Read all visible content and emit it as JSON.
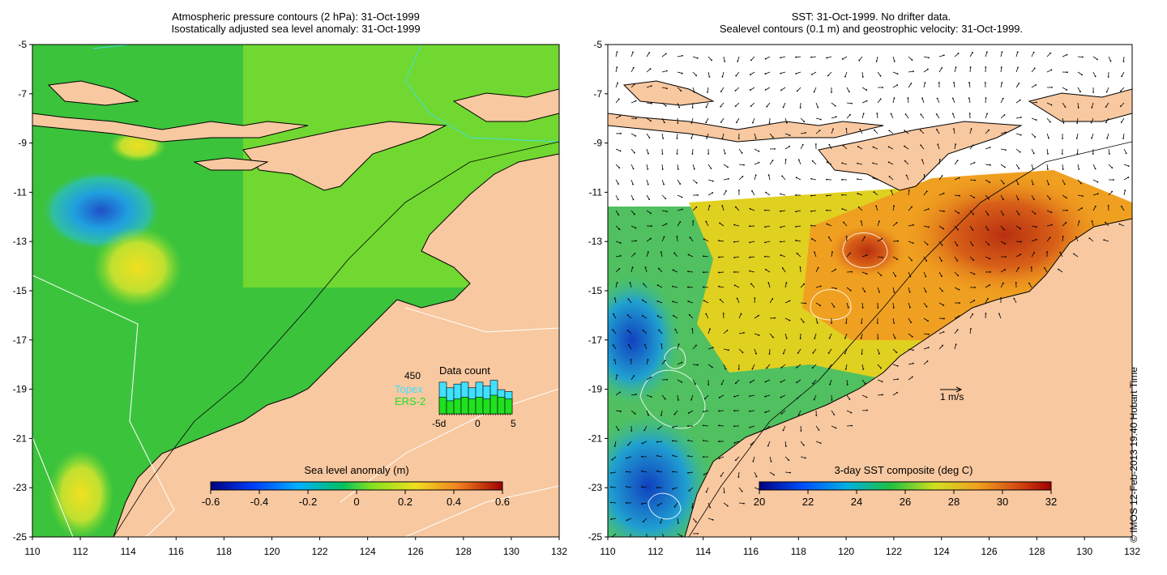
{
  "left_panel": {
    "title_line1": "Atmospheric pressure contours (2 hPa): 31-Oct-1999",
    "title_line2": "Isostatically adjusted sea level anomaly: 31-Oct-1999",
    "colorbar": {
      "label": "Sea level anomaly (m)",
      "ticks": [
        "-0.6",
        "-0.4",
        "-0.2",
        "0",
        "0.2",
        "0.4",
        "0.6"
      ]
    },
    "inset": {
      "title": "Data count",
      "max_label": "450",
      "topex_label": "Topex",
      "ers_label": "ERS-2",
      "x_ticks": [
        "-5d",
        "0",
        "5"
      ],
      "topex_values": [
        0.85,
        0.7,
        0.8,
        0.85,
        0.7,
        0.85,
        0.75,
        0.9,
        0.65,
        0.6
      ],
      "ers_values": [
        0.45,
        0.35,
        0.4,
        0.45,
        0.4,
        0.45,
        0.4,
        0.5,
        0.45,
        0.4
      ]
    }
  },
  "right_panel": {
    "title_line1": "SST: 31-Oct-1999. No drifter data.",
    "title_line2": "Sealevel contours (0.1 m) and geostrophic velocity: 31-Oct-1999.",
    "colorbar": {
      "label": "3-day SST composite (deg C)",
      "ticks": [
        "20",
        "22",
        "24",
        "26",
        "28",
        "30",
        "32"
      ]
    },
    "velocity_scale_label": "1 m/s"
  },
  "axes": {
    "y_ticks": [
      "-5",
      "-7",
      "-9",
      "-11",
      "-13",
      "-15",
      "-17",
      "-19",
      "-21",
      "-23",
      "-25"
    ],
    "x_ticks": [
      "110",
      "112",
      "114",
      "116",
      "118",
      "120",
      "122",
      "124",
      "126",
      "128",
      "130",
      "132"
    ]
  },
  "credit": "© IMOS 12-Feb-2013 19:40 Hobart Time",
  "colors": {
    "land": "#f8c8a0",
    "sea_base": "#3cc33c",
    "sla_low": "#1e64d2",
    "sla_high": "#e6e62d",
    "sst_warm": "#c83c14",
    "sst_cool": "#1e50c8"
  }
}
